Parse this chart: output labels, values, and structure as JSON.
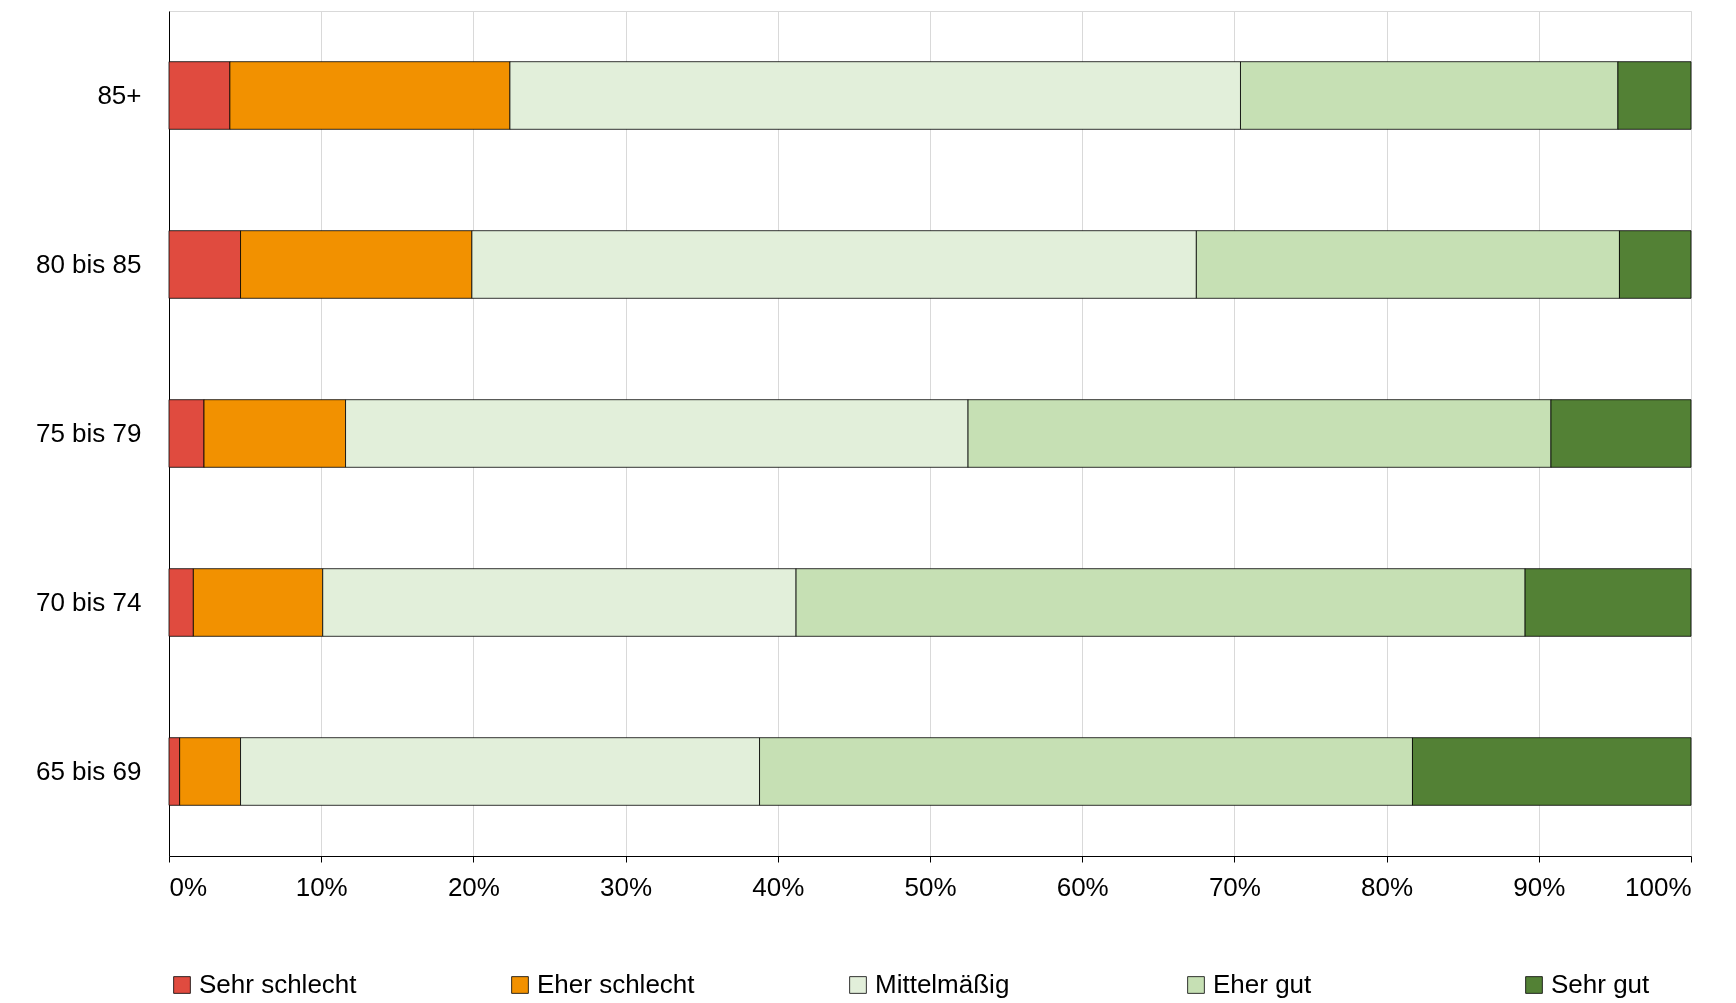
{
  "chart_data": {
    "type": "bar",
    "orientation": "horizontal",
    "stacked": true,
    "categories": [
      "85+",
      "80 bis 85",
      "75 bis 79",
      "70 bis 74",
      "65 bis 69"
    ],
    "series": [
      {
        "name": "Sehr schlecht",
        "color": "#e04b3f",
        "values": [
          4.0,
          4.7,
          2.3,
          1.6,
          0.7
        ]
      },
      {
        "name": "Eher schlecht",
        "color": "#f29100",
        "values": [
          18.4,
          15.2,
          9.3,
          8.5,
          4.0
        ]
      },
      {
        "name": "Mittelmäßig",
        "color": "#e2efda",
        "values": [
          48.0,
          47.6,
          40.9,
          31.1,
          34.1
        ]
      },
      {
        "name": "Eher gut",
        "color": "#c6e0b4",
        "values": [
          24.8,
          27.8,
          38.3,
          47.9,
          42.9
        ]
      },
      {
        "name": "Sehr gut",
        "color": "#538135",
        "values": [
          4.8,
          4.7,
          9.2,
          10.9,
          18.3
        ]
      }
    ],
    "xlim": [
      0,
      100
    ],
    "xticks": [
      {
        "value": 0,
        "label": "0%"
      },
      {
        "value": 10,
        "label": "10%"
      },
      {
        "value": 20,
        "label": "20%"
      },
      {
        "value": 30,
        "label": "30%"
      },
      {
        "value": 40,
        "label": "40%"
      },
      {
        "value": 50,
        "label": "50%"
      },
      {
        "value": 60,
        "label": "60%"
      },
      {
        "value": 70,
        "label": "70%"
      },
      {
        "value": 80,
        "label": "80%"
      },
      {
        "value": 90,
        "label": "90%"
      },
      {
        "value": 100,
        "label": "100%"
      }
    ],
    "grid": "x",
    "legend": "bottom"
  }
}
